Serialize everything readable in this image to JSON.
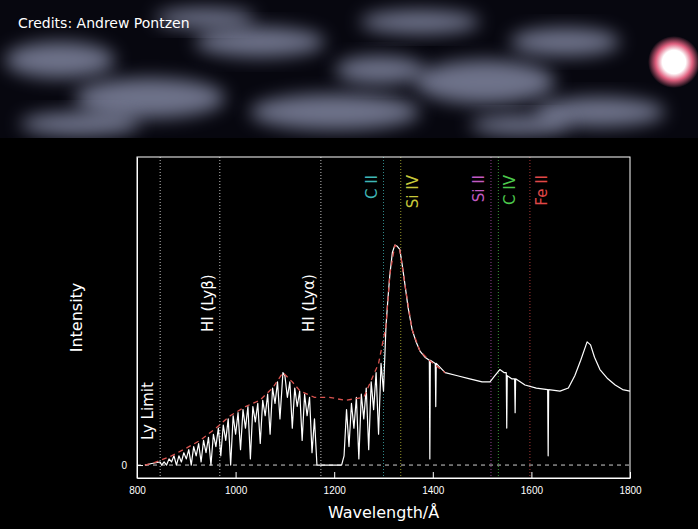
{
  "chart_data": {
    "type": "line",
    "credit": "Credits: Andrew Pontzen",
    "x_label": "Wavelength/Å",
    "y_label": "Intensity",
    "xlim": [
      800,
      1800
    ],
    "xticks": [
      800,
      1000,
      1200,
      1400,
      1600,
      1800
    ],
    "ylim": [
      -0.042,
      1
    ],
    "yticks": [
      0
    ],
    "grid": true,
    "x": [
      816,
      830,
      847,
      850,
      855,
      860,
      865,
      870,
      875,
      880,
      885,
      890,
      895,
      900,
      905,
      910,
      915,
      920,
      925,
      930,
      935,
      940,
      945,
      950,
      955,
      960,
      965,
      970,
      975,
      980,
      985,
      990,
      995,
      1000,
      1005,
      1010,
      1015,
      1020,
      1025,
      1030,
      1035,
      1040,
      1045,
      1050,
      1055,
      1060,
      1065,
      1070,
      1075,
      1080,
      1085,
      1090,
      1096,
      1100,
      1105,
      1110,
      1115,
      1120,
      1125,
      1130,
      1135,
      1140,
      1145,
      1150,
      1155,
      1160,
      1165,
      1180,
      1200,
      1215,
      1220,
      1225,
      1230,
      1235,
      1240,
      1245,
      1250,
      1255,
      1260,
      1265,
      1270,
      1275,
      1280,
      1285,
      1290,
      1295,
      1300,
      1305,
      1309,
      1313,
      1318,
      1323,
      1328,
      1333,
      1338,
      1344,
      1350,
      1358,
      1366,
      1374,
      1384,
      1393,
      1394,
      1395,
      1405,
      1406,
      1407,
      1425,
      1450,
      1475,
      1500,
      1516,
      1526,
      1536,
      1545,
      1549,
      1550,
      1551,
      1560,
      1566,
      1567,
      1568,
      1587,
      1610,
      1633,
      1634,
      1635,
      1658,
      1675,
      1688,
      1700,
      1713,
      1720,
      1728,
      1739,
      1755,
      1770,
      1785,
      1800
    ],
    "series": [
      {
        "color": "#ffffff",
        "line_style": "solid",
        "values": [
          0,
          0.005,
          0.01,
          0,
          0.01,
          0,
          0.02,
          0.01,
          0.03,
          0,
          0.03,
          0.01,
          0.04,
          0.02,
          0.05,
          0,
          0.06,
          0.03,
          0.07,
          0.01,
          0.08,
          0.04,
          0.09,
          0,
          0.1,
          0.06,
          0.12,
          0.03,
          0.13,
          0.08,
          0.15,
          0,
          0.16,
          0.1,
          0.17,
          0.05,
          0.18,
          0.12,
          0.19,
          0.02,
          0.19,
          0.14,
          0.2,
          0.07,
          0.21,
          0.16,
          0.23,
          0.1,
          0.25,
          0.2,
          0.27,
          0.15,
          0.3,
          0.29,
          0.22,
          0.27,
          0.12,
          0.25,
          0.19,
          0.24,
          0.08,
          0.23,
          0.16,
          0.22,
          0.04,
          0.15,
          0,
          0,
          0,
          0,
          0.03,
          0.18,
          0.06,
          0.2,
          0.12,
          0.22,
          0.02,
          0.23,
          0.15,
          0.25,
          0.05,
          0.27,
          0.18,
          0.3,
          0.1,
          0.33,
          0.24,
          0.45,
          0.54,
          0.62,
          0.69,
          0.714,
          0.71,
          0.7,
          0.65,
          0.58,
          0.51,
          0.44,
          0.4,
          0.37,
          0.35,
          0.34,
          0.02,
          0.34,
          0.33,
          0.19,
          0.33,
          0.3,
          0.29,
          0.28,
          0.27,
          0.27,
          0.29,
          0.31,
          0.3,
          0.3,
          0.12,
          0.29,
          0.28,
          0.28,
          0.17,
          0.28,
          0.26,
          0.25,
          0.245,
          0.03,
          0.245,
          0.24,
          0.25,
          0.29,
          0.34,
          0.4,
          0.39,
          0.35,
          0.31,
          0.28,
          0.26,
          0.245,
          0.24
        ]
      },
      {
        "color": "#d9534f",
        "line_style": "dashed",
        "x": [
          816,
          830,
          847,
          870,
          900,
          928,
          960,
          989,
          1020,
          1049,
          1075,
          1096,
          1115,
          1131,
          1160,
          1190,
          1222,
          1260,
          1290,
          1305,
          1313,
          1323,
          1333,
          1344,
          1358,
          1374,
          1393,
          1425
        ],
        "values": [
          0,
          0.005,
          0.015,
          0.03,
          0.055,
          0.08,
          0.12,
          0.16,
          0.19,
          0.21,
          0.25,
          0.3,
          0.27,
          0.24,
          0.22,
          0.22,
          0.21,
          0.22,
          0.33,
          0.45,
          0.62,
          0.714,
          0.7,
          0.58,
          0.44,
          0.37,
          0.34,
          0.3
        ]
      }
    ],
    "annotations": [
      {
        "label": "Ly Limit",
        "x": 847,
        "color": "#ffffff"
      },
      {
        "label": "HI (Lyβ)",
        "x": 968,
        "color": "#ffffff"
      },
      {
        "label": "HI (Lyα)",
        "x": 1173,
        "color": "#ffffff"
      },
      {
        "label": "C II",
        "x": 1300,
        "color": "#3fb6b6"
      },
      {
        "label": "Si IV",
        "x": 1335,
        "color": "#c8c83a"
      },
      {
        "label": "Si II",
        "x": 1518,
        "color": "#c25ac2"
      },
      {
        "label": "C IV",
        "x": 1533,
        "color": "#4cc84c"
      },
      {
        "label": "Fe II",
        "x": 1597,
        "color": "#e04848"
      }
    ]
  }
}
